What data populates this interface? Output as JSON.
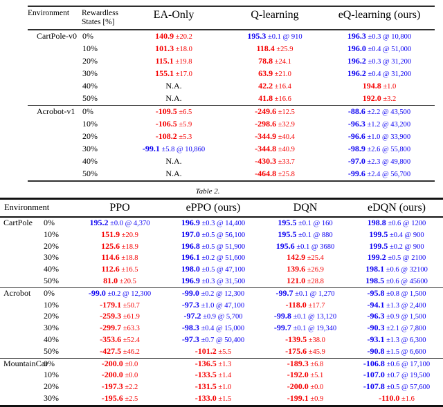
{
  "caption": "Table 2.",
  "colors": {
    "red": "#f50000",
    "blue": "#0b00f2",
    "black": "#000000"
  },
  "table1": {
    "header": {
      "environment": "Environment",
      "rewardless_line1": "Rewardless",
      "rewardless_line2": "States [%]"
    },
    "methods": [
      "EA-Only",
      "Q-learning",
      "eQ-learning (ours)"
    ],
    "sections": [
      {
        "name": "CartPole-v0",
        "rows": [
          [
            "0%",
            [
              "140.9",
              "±20.2",
              "red"
            ],
            [
              "195.3",
              "±0.1 @ 910",
              "blue"
            ],
            [
              "196.3",
              "±0.3 @ 10,800",
              "blue"
            ]
          ],
          [
            "10%",
            [
              "101.3",
              "±18.0",
              "red"
            ],
            [
              "118.4",
              "±25.9",
              "red"
            ],
            [
              "196.0",
              "±0.4 @ 51,000",
              "blue"
            ]
          ],
          [
            "20%",
            [
              "115.1",
              "±19.8",
              "red"
            ],
            [
              "78.8",
              "±24.1",
              "red"
            ],
            [
              "196.2",
              "±0.3 @ 31,200",
              "blue"
            ]
          ],
          [
            "30%",
            [
              "155.1",
              "±17.0",
              "red"
            ],
            [
              "63.9",
              "±21.0",
              "red"
            ],
            [
              "196.2",
              "±0.4 @ 31,200",
              "blue"
            ]
          ],
          [
            "40%",
            [
              "N.A.",
              "",
              "black"
            ],
            [
              "42.2",
              "±16.4",
              "red"
            ],
            [
              "194.8",
              "±1.0",
              "red"
            ]
          ],
          [
            "50%",
            [
              "N.A.",
              "",
              "black"
            ],
            [
              "41.8",
              "±16.6",
              "red"
            ],
            [
              "192.0",
              "±3.2",
              "red"
            ]
          ]
        ]
      },
      {
        "name": "Acrobot-v1",
        "rows": [
          [
            "0%",
            [
              "-109.5",
              "±6.5",
              "red"
            ],
            [
              "-249.6",
              "±12.5",
              "red"
            ],
            [
              "-88.6",
              "±2.2 @ 43,500",
              "blue"
            ]
          ],
          [
            "10%",
            [
              "-106.5",
              "±5.9",
              "red"
            ],
            [
              "-298.6",
              "±32.9",
              "red"
            ],
            [
              "-96.3",
              "±1.2 @ 43,200",
              "blue"
            ]
          ],
          [
            "20%",
            [
              "-108.2",
              "±5.3",
              "red"
            ],
            [
              "-344.9",
              "±40.4",
              "red"
            ],
            [
              "-96.6",
              "±1.0 @ 33,900",
              "blue"
            ]
          ],
          [
            "30%",
            [
              "-99.1",
              "±5.8 @ 10,860",
              "blue"
            ],
            [
              "-344.8",
              "±40.9",
              "red"
            ],
            [
              "-98.9",
              "±2.6 @ 55,800",
              "blue"
            ]
          ],
          [
            "40%",
            [
              "N.A.",
              "",
              "black"
            ],
            [
              "-430.3",
              "±33.7",
              "red"
            ],
            [
              "-97.0",
              "±2.3 @ 49,800",
              "blue"
            ]
          ],
          [
            "50%",
            [
              "N.A.",
              "",
              "black"
            ],
            [
              "-464.8",
              "±25.8",
              "red"
            ],
            [
              "-99.6",
              "±2.4 @ 56,700",
              "blue"
            ]
          ]
        ]
      }
    ]
  },
  "table2": {
    "header": {
      "environment": "Environment"
    },
    "methods": [
      "PPO",
      "ePPO (ours)",
      "DQN",
      "eDQN (ours)"
    ],
    "sections": [
      {
        "name": "CartPole",
        "rows": [
          [
            "0%",
            [
              "195.2",
              "±0.0 @ 4,370",
              "blue"
            ],
            [
              "196.9",
              "±0.3 @ 14,400",
              "blue"
            ],
            [
              "195.5",
              "±0.1 @ 160",
              "blue"
            ],
            [
              "198.8",
              "±0.6 @ 1200",
              "blue"
            ]
          ],
          [
            "10%",
            [
              "151.9",
              "±20.9",
              "red"
            ],
            [
              "197.0",
              "±0.5 @ 56,100",
              "blue"
            ],
            [
              "195.5",
              "±0.1 @ 880",
              "blue"
            ],
            [
              "199.5",
              "±0.4 @ 900",
              "blue"
            ]
          ],
          [
            "20%",
            [
              "125.6",
              "±18.9",
              "red"
            ],
            [
              "196.8",
              "±0.5 @ 51,900",
              "blue"
            ],
            [
              "195.6",
              "±0.1 @ 3680",
              "blue"
            ],
            [
              "199.5",
              "±0.2 @ 900",
              "blue"
            ]
          ],
          [
            "30%",
            [
              "114.6",
              "±18.8",
              "red"
            ],
            [
              "196.1",
              "±0.2 @ 51,600",
              "blue"
            ],
            [
              "142.9",
              "±25.4",
              "red"
            ],
            [
              "199.2",
              "±0.5 @ 2100",
              "blue"
            ]
          ],
          [
            "40%",
            [
              "112.6",
              "±16.5",
              "red"
            ],
            [
              "198.0",
              "±0.5 @ 47,100",
              "blue"
            ],
            [
              "139.6",
              "±26.9",
              "red"
            ],
            [
              "198.1",
              "±0.6 @ 32100",
              "blue"
            ]
          ],
          [
            "50%",
            [
              "81.0",
              "±20.5",
              "red"
            ],
            [
              "196.9",
              "±0.3 @ 31,500",
              "blue"
            ],
            [
              "121.0",
              "±28.8",
              "red"
            ],
            [
              "198.5",
              "±0.6 @ 45600",
              "blue"
            ]
          ]
        ]
      },
      {
        "name": "Acrobot",
        "rows": [
          [
            "0%",
            [
              "-99.0",
              "±0.2 @ 12,300",
              "blue"
            ],
            [
              "-99.0",
              "±0.2 @ 12,300",
              "blue"
            ],
            [
              "-99.7",
              "±0.1 @ 1,270",
              "blue"
            ],
            [
              "-95.8",
              "±0.8 @ 1,500",
              "blue"
            ]
          ],
          [
            "10%",
            [
              "-179.1",
              "±50.7",
              "red"
            ],
            [
              "-97.3",
              "±1.0 @ 47,100",
              "blue"
            ],
            [
              "-118.0",
              "±17.7",
              "red"
            ],
            [
              "-94.1",
              "±1.3 @ 2,400",
              "blue"
            ]
          ],
          [
            "20%",
            [
              "-259.3",
              "±61.9",
              "red"
            ],
            [
              "-97.2",
              "±0.9 @ 5,700",
              "blue"
            ],
            [
              "-99.8",
              "±0.1 @ 13,120",
              "blue"
            ],
            [
              "-96.3",
              "±0.9 @ 1,500",
              "blue"
            ]
          ],
          [
            "30%",
            [
              "-299.7",
              "±63.3",
              "red"
            ],
            [
              "-98.3",
              "±0.4 @ 15,000",
              "blue"
            ],
            [
              "-99.7",
              "±0.1 @ 19,340",
              "blue"
            ],
            [
              "-90.3",
              "±2.1 @ 7,800",
              "blue"
            ]
          ],
          [
            "40%",
            [
              "-353.6",
              "±52.4",
              "red"
            ],
            [
              "-97.3",
              "±0.7 @ 50,400",
              "blue"
            ],
            [
              "-139.5",
              "±38.0",
              "red"
            ],
            [
              "-93.1",
              "±1.3 @ 6,300",
              "blue"
            ]
          ],
          [
            "50%",
            [
              "-427.5",
              "±46.2",
              "red"
            ],
            [
              "-101.2",
              "±5.5",
              "red"
            ],
            [
              "-175.6",
              "±45.9",
              "red"
            ],
            [
              "-90.8",
              "±1.5 @ 6,600",
              "blue"
            ]
          ]
        ]
      },
      {
        "name": "MountainCar",
        "rows": [
          [
            "0%",
            [
              "-200.0",
              "±0.0",
              "red"
            ],
            [
              "-136.5",
              "±1.3",
              "red"
            ],
            [
              "-189.3",
              "±6.8",
              "red"
            ],
            [
              "-106.8",
              "±0.6 @ 17,100",
              "blue"
            ]
          ],
          [
            "10%",
            [
              "-200.0",
              "±0.0",
              "red"
            ],
            [
              "-133.5",
              "±1.4",
              "red"
            ],
            [
              "-192.0",
              "±5.1",
              "red"
            ],
            [
              "-107.0",
              "±0.7 @ 19,500",
              "blue"
            ]
          ],
          [
            "20%",
            [
              "-197.3",
              "±2.2",
              "red"
            ],
            [
              "-131.5",
              "±1.0",
              "red"
            ],
            [
              "-200.0",
              "±0.0",
              "red"
            ],
            [
              "-107.8",
              "±0.5 @ 57,600",
              "blue"
            ]
          ],
          [
            "30%",
            [
              "-195.6",
              "±2.5",
              "red"
            ],
            [
              "-133.0",
              "±1.5",
              "red"
            ],
            [
              "-199.1",
              "±0.9",
              "red"
            ],
            [
              "-110.0",
              "±1.6",
              "red"
            ]
          ]
        ]
      }
    ]
  }
}
